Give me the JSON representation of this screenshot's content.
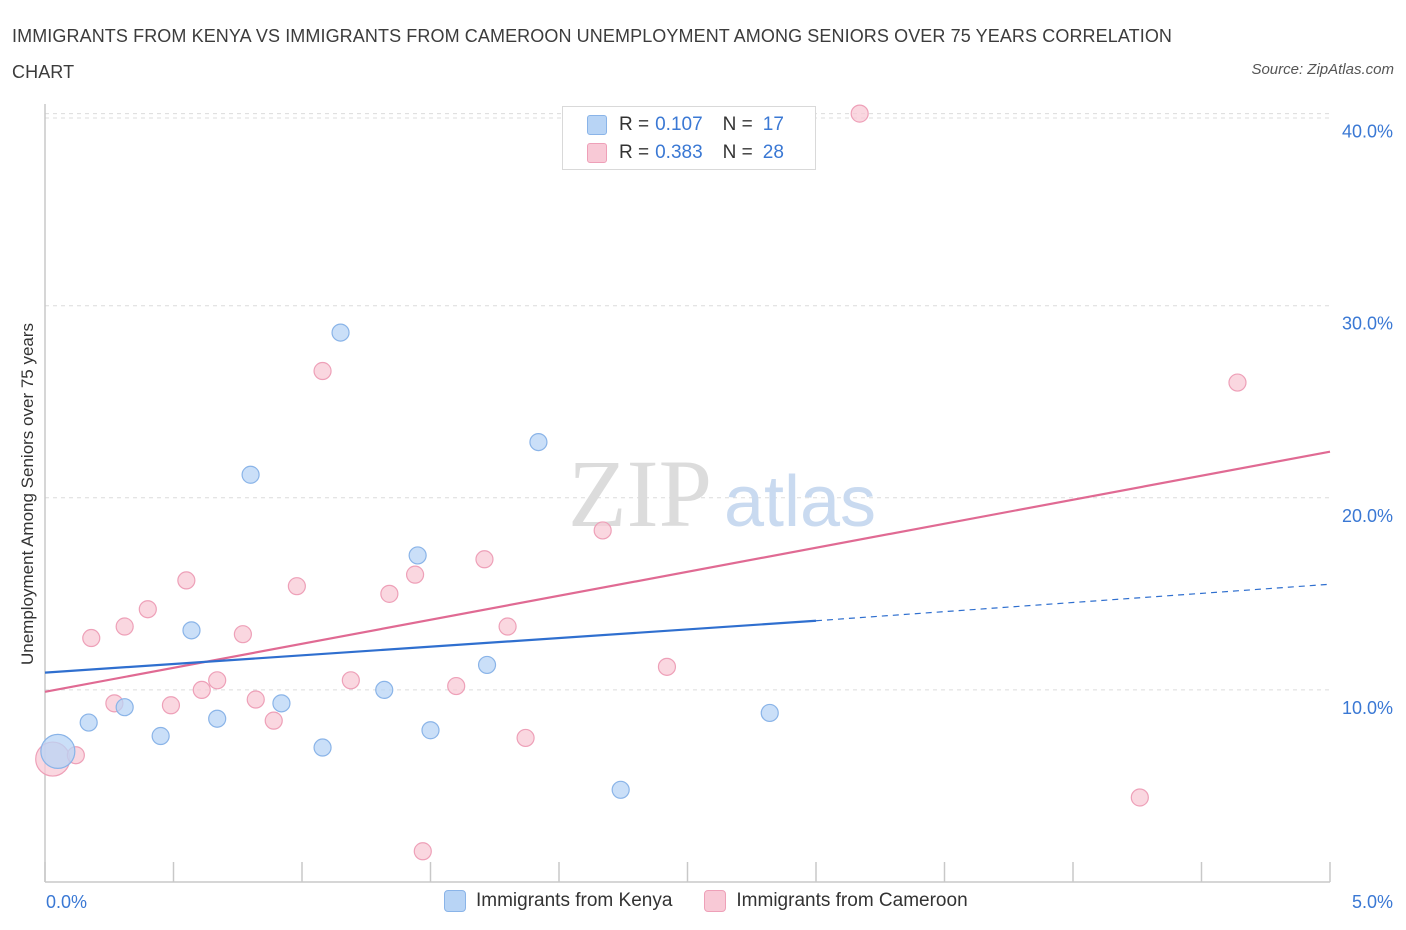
{
  "header": {
    "title": "IMMIGRANTS FROM KENYA VS IMMIGRANTS FROM CAMEROON UNEMPLOYMENT AMONG SENIORS OVER 75 YEARS CORRELATION CHART",
    "source": "Source: ZipAtlas.com"
  },
  "watermark": {
    "zip": "ZIP",
    "atlas": "atlas"
  },
  "legend": {
    "r_label": "R =",
    "n_label": "N =",
    "rows": [
      {
        "r": "0.107",
        "n": "17"
      },
      {
        "r": "0.383",
        "n": "28"
      }
    ]
  },
  "colors": {
    "kenya_fill": "#b8d4f5",
    "kenya_stroke": "#8ab4e8",
    "kenya_line": "#2f6fcf",
    "cameroon_fill": "#f8c9d6",
    "cameroon_stroke": "#eea0b8",
    "cameroon_line": "#e06a93",
    "tick_text": "#3a78d4",
    "grid": "#dcdcdc"
  },
  "chart_data": {
    "type": "scatter",
    "title": "IMMIGRANTS FROM KENYA VS IMMIGRANTS FROM CAMEROON UNEMPLOYMENT AMONG SENIORS OVER 75 YEARS CORRELATION CHART",
    "xlabel": "",
    "ylabel": "Unemployment Among Seniors over 75 years",
    "xlim": [
      0,
      5
    ],
    "ylim": [
      0,
      40.5
    ],
    "x_tick_labels": [
      "0.0%",
      "5.0%"
    ],
    "y_ticks": [
      10,
      20,
      30,
      40
    ],
    "y_tick_labels": [
      "10.0%",
      "20.0%",
      "30.0%",
      "40.0%"
    ],
    "grid": true,
    "legend_position": "bottom",
    "series": [
      {
        "name": "Immigrants from Kenya",
        "r": 0.107,
        "n": 17,
        "points": [
          {
            "x": 0.05,
            "y": 6.8,
            "big": true
          },
          {
            "x": 0.17,
            "y": 8.3
          },
          {
            "x": 0.31,
            "y": 9.1
          },
          {
            "x": 0.45,
            "y": 7.6
          },
          {
            "x": 0.57,
            "y": 13.1
          },
          {
            "x": 0.67,
            "y": 8.5
          },
          {
            "x": 0.8,
            "y": 21.2
          },
          {
            "x": 0.92,
            "y": 9.3
          },
          {
            "x": 1.08,
            "y": 7.0
          },
          {
            "x": 1.15,
            "y": 28.6
          },
          {
            "x": 1.32,
            "y": 10.0
          },
          {
            "x": 1.45,
            "y": 17.0
          },
          {
            "x": 1.5,
            "y": 7.9
          },
          {
            "x": 1.72,
            "y": 11.3
          },
          {
            "x": 1.92,
            "y": 22.9
          },
          {
            "x": 2.24,
            "y": 4.8
          },
          {
            "x": 2.82,
            "y": 8.8
          }
        ],
        "trend": {
          "x0": 0,
          "y0": 10.9,
          "x1": 3.0,
          "y1": 13.6,
          "dash_to_x": 5.0,
          "dash_to_y": 15.5
        }
      },
      {
        "name": "Immigrants from Cameroon",
        "r": 0.383,
        "n": 28,
        "points": [
          {
            "x": 0.03,
            "y": 6.4,
            "big": true
          },
          {
            "x": 0.12,
            "y": 6.6
          },
          {
            "x": 0.18,
            "y": 12.7
          },
          {
            "x": 0.27,
            "y": 9.3
          },
          {
            "x": 0.31,
            "y": 13.3
          },
          {
            "x": 0.4,
            "y": 14.2
          },
          {
            "x": 0.49,
            "y": 9.2
          },
          {
            "x": 0.55,
            "y": 15.7
          },
          {
            "x": 0.61,
            "y": 10.0
          },
          {
            "x": 0.67,
            "y": 10.5
          },
          {
            "x": 0.77,
            "y": 12.9
          },
          {
            "x": 0.82,
            "y": 9.5
          },
          {
            "x": 0.89,
            "y": 8.4
          },
          {
            "x": 0.98,
            "y": 15.4
          },
          {
            "x": 1.08,
            "y": 26.6
          },
          {
            "x": 1.19,
            "y": 10.5
          },
          {
            "x": 1.34,
            "y": 15.0
          },
          {
            "x": 1.44,
            "y": 16.0
          },
          {
            "x": 1.47,
            "y": 1.6
          },
          {
            "x": 1.6,
            "y": 10.2
          },
          {
            "x": 1.71,
            "y": 16.8
          },
          {
            "x": 1.8,
            "y": 13.3
          },
          {
            "x": 1.87,
            "y": 7.5
          },
          {
            "x": 2.17,
            "y": 18.3
          },
          {
            "x": 2.42,
            "y": 11.2
          },
          {
            "x": 3.17,
            "y": 40.0
          },
          {
            "x": 4.26,
            "y": 4.4
          },
          {
            "x": 4.64,
            "y": 26.0
          }
        ],
        "trend": {
          "x0": 0,
          "y0": 9.9,
          "x1": 5.0,
          "y1": 22.4
        }
      }
    ]
  }
}
